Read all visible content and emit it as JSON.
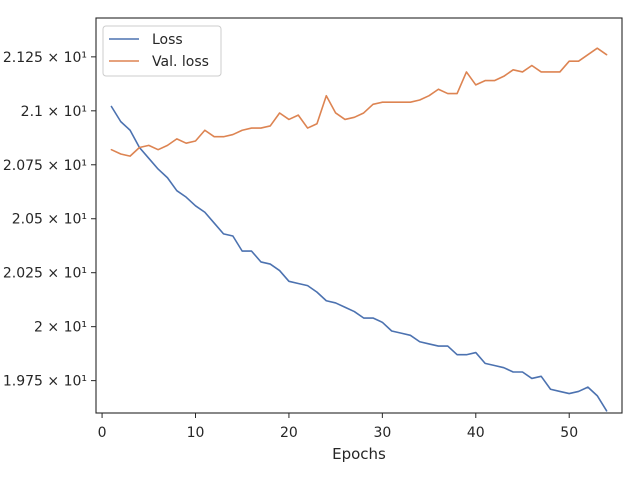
{
  "chart_data": {
    "type": "line",
    "title": "",
    "xlabel": "Epochs",
    "ylabel": "",
    "xlim": [
      -0.65,
      55.65
    ],
    "ylim": [
      19.6,
      21.43
    ],
    "x_ticks": [
      {
        "value": 0,
        "label": "0"
      },
      {
        "value": 10,
        "label": "10"
      },
      {
        "value": 20,
        "label": "20"
      },
      {
        "value": 30,
        "label": "30"
      },
      {
        "value": 40,
        "label": "40"
      },
      {
        "value": 50,
        "label": "50"
      }
    ],
    "y_ticks": [
      {
        "value": 19.75,
        "label": "1.975 × 10¹"
      },
      {
        "value": 20.0,
        "label": "2 × 10¹"
      },
      {
        "value": 20.25,
        "label": "2.025 × 10¹"
      },
      {
        "value": 20.5,
        "label": "2.05 × 10¹"
      },
      {
        "value": 20.75,
        "label": "2.075 × 10¹"
      },
      {
        "value": 21.0,
        "label": "2.1 × 10¹"
      },
      {
        "value": 21.25,
        "label": "2.125 × 10¹"
      }
    ],
    "x": [
      1,
      2,
      3,
      4,
      5,
      6,
      7,
      8,
      9,
      10,
      11,
      12,
      13,
      14,
      15,
      16,
      17,
      18,
      19,
      20,
      21,
      22,
      23,
      24,
      25,
      26,
      27,
      28,
      29,
      30,
      31,
      32,
      33,
      34,
      35,
      36,
      37,
      38,
      39,
      40,
      41,
      42,
      43,
      44,
      45,
      46,
      47,
      48,
      49,
      50,
      51,
      52,
      53,
      54
    ],
    "series": [
      {
        "name": "Loss",
        "color": "#4c72b0",
        "values": [
          21.02,
          20.95,
          20.91,
          20.83,
          20.78,
          20.73,
          20.69,
          20.63,
          20.6,
          20.56,
          20.53,
          20.48,
          20.43,
          20.42,
          20.35,
          20.35,
          20.3,
          20.29,
          20.26,
          20.21,
          20.2,
          20.19,
          20.16,
          20.12,
          20.11,
          20.09,
          20.07,
          20.04,
          20.04,
          20.02,
          19.98,
          19.97,
          19.96,
          19.93,
          19.92,
          19.91,
          19.91,
          19.87,
          19.87,
          19.88,
          19.83,
          19.82,
          19.81,
          19.79,
          19.79,
          19.76,
          19.77,
          19.71,
          19.7,
          19.69,
          19.7,
          19.72,
          19.68,
          19.61
        ]
      },
      {
        "name": "Val. loss",
        "color": "#dd8452",
        "values": [
          20.82,
          20.8,
          20.79,
          20.83,
          20.84,
          20.82,
          20.84,
          20.87,
          20.85,
          20.86,
          20.91,
          20.88,
          20.88,
          20.89,
          20.91,
          20.92,
          20.92,
          20.93,
          20.99,
          20.96,
          20.98,
          20.92,
          20.94,
          21.07,
          20.99,
          20.96,
          20.97,
          20.99,
          21.03,
          21.04,
          21.04,
          21.04,
          21.04,
          21.05,
          21.07,
          21.1,
          21.08,
          21.08,
          21.18,
          21.12,
          21.14,
          21.14,
          21.16,
          21.19,
          21.18,
          21.21,
          21.18,
          21.18,
          21.18,
          21.23,
          21.23,
          21.26,
          21.29,
          21.26
        ]
      }
    ],
    "legend": {
      "position": "top-left"
    },
    "grid": false
  }
}
